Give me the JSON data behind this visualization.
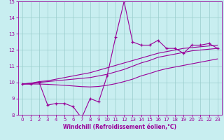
{
  "xlabel": "Windchill (Refroidissement éolien,°C)",
  "xlim": [
    -0.5,
    23.5
  ],
  "ylim": [
    8,
    15
  ],
  "xticks": [
    0,
    1,
    2,
    3,
    4,
    5,
    6,
    7,
    8,
    9,
    10,
    11,
    12,
    13,
    14,
    15,
    16,
    17,
    18,
    19,
    20,
    21,
    22,
    23
  ],
  "yticks": [
    8,
    9,
    10,
    11,
    12,
    13,
    14,
    15
  ],
  "background_color": "#c8eef0",
  "grid_color": "#99cccc",
  "line_color": "#990099",
  "tick_color": "#990099",
  "x": [
    0,
    1,
    2,
    3,
    4,
    5,
    6,
    7,
    8,
    9,
    10,
    11,
    12,
    13,
    14,
    15,
    16,
    17,
    18,
    19,
    20,
    21,
    22,
    23
  ],
  "y_main": [
    9.9,
    9.9,
    10.0,
    8.6,
    8.7,
    8.7,
    8.5,
    7.8,
    9.0,
    8.8,
    10.4,
    12.8,
    15.0,
    12.5,
    12.3,
    12.3,
    12.6,
    12.1,
    12.1,
    11.8,
    12.3,
    12.3,
    12.4,
    12.1
  ],
  "y_upper": [
    9.9,
    9.95,
    10.0,
    10.05,
    10.1,
    10.15,
    10.2,
    10.25,
    10.3,
    10.4,
    10.5,
    10.65,
    10.8,
    11.0,
    11.2,
    11.35,
    11.55,
    11.65,
    11.75,
    11.85,
    11.95,
    12.0,
    12.05,
    12.1
  ],
  "y_upper2": [
    9.9,
    9.95,
    10.05,
    10.1,
    10.2,
    10.3,
    10.4,
    10.5,
    10.6,
    10.75,
    10.9,
    11.05,
    11.2,
    11.35,
    11.5,
    11.65,
    11.8,
    11.9,
    12.0,
    12.1,
    12.15,
    12.2,
    12.25,
    12.3
  ],
  "y_lower": [
    9.9,
    9.9,
    9.9,
    9.88,
    9.85,
    9.82,
    9.78,
    9.74,
    9.72,
    9.75,
    9.82,
    9.92,
    10.05,
    10.2,
    10.4,
    10.55,
    10.72,
    10.85,
    10.95,
    11.05,
    11.15,
    11.25,
    11.35,
    11.45
  ]
}
